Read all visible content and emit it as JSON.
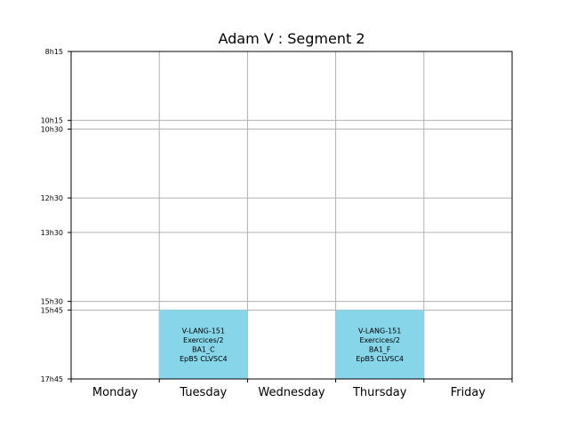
{
  "chart_data": {
    "type": "timetable",
    "title": "Adam V : Segment 2",
    "days": [
      "Monday",
      "Tuesday",
      "Wednesday",
      "Thursday",
      "Friday"
    ],
    "time_ticks": [
      "8h15",
      "10h15",
      "10h30",
      "12h30",
      "13h30",
      "15h30",
      "15h45",
      "17h45"
    ],
    "time_range": [
      "8h15",
      "17h45"
    ],
    "grid": true,
    "events": [
      {
        "day": "Tuesday",
        "start": "15h45",
        "end": "17h45",
        "lines": [
          "V-LANG-151",
          "Exercices/2",
          "BA1_C",
          "EpB5 CLVSC4"
        ],
        "color": "#87d5e8"
      },
      {
        "day": "Thursday",
        "start": "15h45",
        "end": "17h45",
        "lines": [
          "V-LANG-151",
          "Exercices/2",
          "BA1_F",
          "EpB5 CLVSC4"
        ],
        "color": "#87d5e8"
      }
    ]
  }
}
